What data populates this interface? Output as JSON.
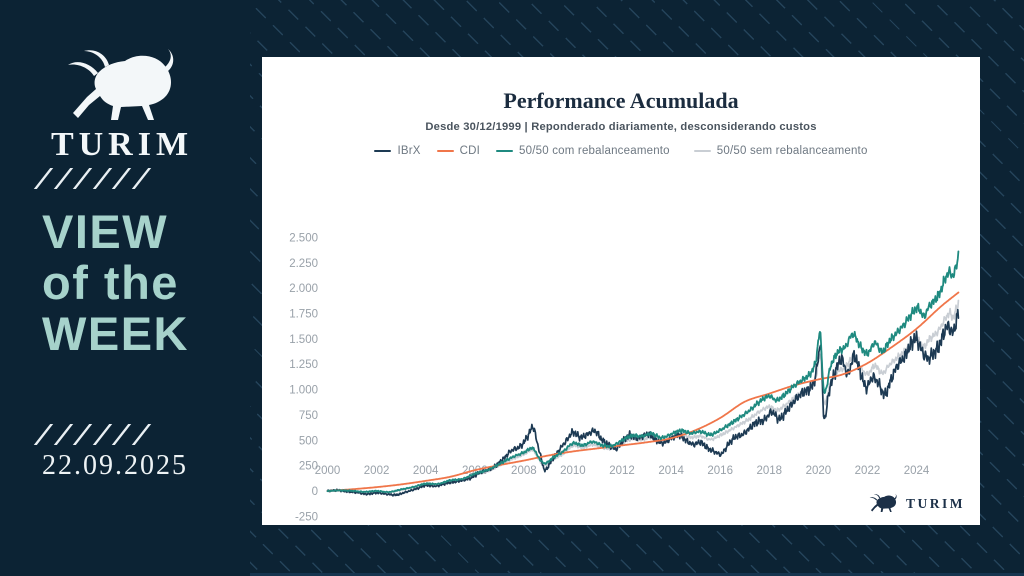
{
  "palette": {
    "background": "#0c2334",
    "card": "#ffffff",
    "accent_text": "#a6d2cb",
    "brand_navy": "#1c3048"
  },
  "sidebar": {
    "brand": "TURIM",
    "title_lines": [
      "VIEW",
      "of the",
      "WEEK"
    ],
    "date": "22.09.2025"
  },
  "footer": {
    "brand": "TURIM"
  },
  "chart_data": {
    "type": "line",
    "title": "Performance Acumulada",
    "subtitle": "Desde 30/12/1999 | Reponderado diariamente, desconsiderando custos",
    "grid": false,
    "legend_position": "top",
    "x_range": [
      1999.95,
      2025.75
    ],
    "y_range": [
      -250,
      2500
    ],
    "x_ticks": [
      {
        "v": 2000,
        "label": "2000"
      },
      {
        "v": 2002,
        "label": "2002"
      },
      {
        "v": 2004,
        "label": "2004"
      },
      {
        "v": 2006,
        "label": "2006"
      },
      {
        "v": 2008,
        "label": "2008"
      },
      {
        "v": 2010,
        "label": "2010"
      },
      {
        "v": 2012,
        "label": "2012"
      },
      {
        "v": 2014,
        "label": "2014"
      },
      {
        "v": 2016,
        "label": "2016"
      },
      {
        "v": 2018,
        "label": "2018"
      },
      {
        "v": 2020,
        "label": "2020"
      },
      {
        "v": 2022,
        "label": "2022"
      },
      {
        "v": 2024,
        "label": "2024"
      }
    ],
    "y_ticks": [
      {
        "v": -250,
        "label": "-250"
      },
      {
        "v": 0,
        "label": "0"
      },
      {
        "v": 250,
        "label": "250"
      },
      {
        "v": 500,
        "label": "500"
      },
      {
        "v": 750,
        "label": "750"
      },
      {
        "v": 1000,
        "label": "1.000"
      },
      {
        "v": 1250,
        "label": "1.250"
      },
      {
        "v": 1500,
        "label": "1.500"
      },
      {
        "v": 1750,
        "label": "1.750"
      },
      {
        "v": 2000,
        "label": "2.000"
      },
      {
        "v": 2250,
        "label": "2.250"
      },
      {
        "v": 2500,
        "label": "2.500"
      }
    ],
    "series": [
      {
        "name": "IBrX",
        "color": "#1d3a53",
        "jitter": 1.0,
        "width": 1.7,
        "points": [
          [
            2000,
            0
          ],
          [
            2000.4,
            8
          ],
          [
            2000.8,
            -5
          ],
          [
            2001.2,
            -15
          ],
          [
            2001.6,
            -30
          ],
          [
            2002,
            -18
          ],
          [
            2002.4,
            -30
          ],
          [
            2002.8,
            -38
          ],
          [
            2003.2,
            -10
          ],
          [
            2003.6,
            20
          ],
          [
            2004,
            55
          ],
          [
            2004.4,
            48
          ],
          [
            2004.9,
            80
          ],
          [
            2005.3,
            95
          ],
          [
            2005.8,
            125
          ],
          [
            2006.2,
            180
          ],
          [
            2006.7,
            225
          ],
          [
            2007.1,
            300
          ],
          [
            2007.5,
            400
          ],
          [
            2007.8,
            430
          ],
          [
            2008,
            480
          ],
          [
            2008.2,
            560
          ],
          [
            2008.38,
            630
          ],
          [
            2008.55,
            470
          ],
          [
            2008.7,
            330
          ],
          [
            2008.85,
            205
          ],
          [
            2009.1,
            290
          ],
          [
            2009.4,
            390
          ],
          [
            2009.8,
            520
          ],
          [
            2010,
            580
          ],
          [
            2010.3,
            530
          ],
          [
            2010.6,
            560
          ],
          [
            2010.9,
            590
          ],
          [
            2011.2,
            500
          ],
          [
            2011.5,
            450
          ],
          [
            2011.75,
            415
          ],
          [
            2012,
            480
          ],
          [
            2012.3,
            550
          ],
          [
            2012.6,
            520
          ],
          [
            2012.9,
            545
          ],
          [
            2013.1,
            560
          ],
          [
            2013.4,
            500
          ],
          [
            2013.7,
            475
          ],
          [
            2014,
            520
          ],
          [
            2014.3,
            555
          ],
          [
            2014.6,
            500
          ],
          [
            2014.9,
            460
          ],
          [
            2015.2,
            480
          ],
          [
            2015.5,
            420
          ],
          [
            2015.8,
            385
          ],
          [
            2016.05,
            364
          ],
          [
            2016.3,
            450
          ],
          [
            2016.6,
            530
          ],
          [
            2016.9,
            555
          ],
          [
            2017.2,
            620
          ],
          [
            2017.5,
            680
          ],
          [
            2017.8,
            700
          ],
          [
            2018.1,
            780
          ],
          [
            2018.4,
            710
          ],
          [
            2018.7,
            790
          ],
          [
            2019,
            880
          ],
          [
            2019.3,
            960
          ],
          [
            2019.6,
            1000
          ],
          [
            2019.85,
            1100
          ],
          [
            2020.05,
            1400
          ],
          [
            2020.1,
            1465
          ],
          [
            2020.22,
            738
          ],
          [
            2020.45,
            1000
          ],
          [
            2020.7,
            1180
          ],
          [
            2020.95,
            1300
          ],
          [
            2021.2,
            1150
          ],
          [
            2021.45,
            1330
          ],
          [
            2021.7,
            1180
          ],
          [
            2021.95,
            1020
          ],
          [
            2022.2,
            1120
          ],
          [
            2022.45,
            1060
          ],
          [
            2022.7,
            950
          ],
          [
            2022.95,
            1090
          ],
          [
            2023.2,
            1230
          ],
          [
            2023.5,
            1320
          ],
          [
            2023.8,
            1460
          ],
          [
            2024,
            1500
          ],
          [
            2024.2,
            1390
          ],
          [
            2024.45,
            1310
          ],
          [
            2024.7,
            1360
          ],
          [
            2024.9,
            1420
          ],
          [
            2025.1,
            1550
          ],
          [
            2025.3,
            1630
          ],
          [
            2025.45,
            1560
          ],
          [
            2025.6,
            1650
          ],
          [
            2025.72,
            1790
          ]
        ]
      },
      {
        "name": "CDI",
        "color": "#f0764a",
        "jitter": 0,
        "width": 1.8,
        "points": [
          [
            2000,
            0
          ],
          [
            2001,
            17
          ],
          [
            2002,
            38
          ],
          [
            2003,
            65
          ],
          [
            2004,
            100
          ],
          [
            2005,
            140
          ],
          [
            2006,
            205
          ],
          [
            2007,
            255
          ],
          [
            2008,
            300
          ],
          [
            2009,
            350
          ],
          [
            2010,
            390
          ],
          [
            2011,
            420
          ],
          [
            2012,
            450
          ],
          [
            2013,
            480
          ],
          [
            2014,
            520
          ],
          [
            2015,
            600
          ],
          [
            2016,
            720
          ],
          [
            2017,
            880
          ],
          [
            2018,
            960
          ],
          [
            2019,
            1040
          ],
          [
            2020,
            1100
          ],
          [
            2021,
            1150
          ],
          [
            2022,
            1260
          ],
          [
            2023,
            1420
          ],
          [
            2024,
            1600
          ],
          [
            2025,
            1820
          ],
          [
            2025.72,
            1960
          ]
        ]
      },
      {
        "name": "50/50 com rebalanceamento",
        "color": "#1f8a80",
        "jitter": 0.5,
        "width": 1.8,
        "points": [
          [
            2000,
            0
          ],
          [
            2000.5,
            6
          ],
          [
            2001,
            2
          ],
          [
            2001.5,
            -8
          ],
          [
            2002,
            0
          ],
          [
            2002.5,
            -10
          ],
          [
            2003,
            15
          ],
          [
            2003.5,
            40
          ],
          [
            2004,
            72
          ],
          [
            2004.5,
            70
          ],
          [
            2005,
            105
          ],
          [
            2005.5,
            120
          ],
          [
            2006,
            170
          ],
          [
            2006.5,
            205
          ],
          [
            2007,
            265
          ],
          [
            2007.5,
            330
          ],
          [
            2008,
            380
          ],
          [
            2008.38,
            420
          ],
          [
            2008.6,
            330
          ],
          [
            2008.85,
            272
          ],
          [
            2009.2,
            330
          ],
          [
            2009.6,
            390
          ],
          [
            2010,
            470
          ],
          [
            2010.4,
            450
          ],
          [
            2010.8,
            485
          ],
          [
            2011.2,
            450
          ],
          [
            2011.6,
            445
          ],
          [
            2012,
            500
          ],
          [
            2012.4,
            545
          ],
          [
            2012.8,
            540
          ],
          [
            2013.2,
            565
          ],
          [
            2013.6,
            525
          ],
          [
            2014,
            560
          ],
          [
            2014.4,
            595
          ],
          [
            2014.8,
            570
          ],
          [
            2015.2,
            585
          ],
          [
            2015.6,
            555
          ],
          [
            2016,
            600
          ],
          [
            2016.4,
            660
          ],
          [
            2016.8,
            725
          ],
          [
            2017.2,
            795
          ],
          [
            2017.6,
            880
          ],
          [
            2018,
            935
          ],
          [
            2018.3,
            895
          ],
          [
            2018.6,
            945
          ],
          [
            2019,
            1035
          ],
          [
            2019.4,
            1105
          ],
          [
            2019.7,
            1165
          ],
          [
            2019.9,
            1290
          ],
          [
            2020.08,
            1550
          ],
          [
            2020.22,
            985
          ],
          [
            2020.5,
            1230
          ],
          [
            2020.8,
            1370
          ],
          [
            2021.1,
            1420
          ],
          [
            2021.4,
            1545
          ],
          [
            2021.7,
            1430
          ],
          [
            2022,
            1355
          ],
          [
            2022.3,
            1460
          ],
          [
            2022.6,
            1375
          ],
          [
            2022.9,
            1480
          ],
          [
            2023.2,
            1560
          ],
          [
            2023.5,
            1645
          ],
          [
            2023.8,
            1745
          ],
          [
            2024.05,
            1805
          ],
          [
            2024.3,
            1725
          ],
          [
            2024.5,
            1815
          ],
          [
            2024.75,
            1885
          ],
          [
            2024.95,
            1955
          ],
          [
            2025.15,
            2085
          ],
          [
            2025.35,
            2160
          ],
          [
            2025.5,
            2115
          ],
          [
            2025.6,
            2215
          ],
          [
            2025.72,
            2330
          ]
        ]
      },
      {
        "name": "50/50 sem rebalanceamento",
        "color": "#c9ced4",
        "jitter": 0.45,
        "width": 1.7,
        "points": [
          [
            2000,
            0
          ],
          [
            2000.5,
            5
          ],
          [
            2001,
            0
          ],
          [
            2001.5,
            -10
          ],
          [
            2002,
            -3
          ],
          [
            2002.5,
            -14
          ],
          [
            2003,
            10
          ],
          [
            2003.5,
            34
          ],
          [
            2004,
            66
          ],
          [
            2004.5,
            63
          ],
          [
            2005,
            97
          ],
          [
            2005.5,
            112
          ],
          [
            2006,
            160
          ],
          [
            2006.5,
            192
          ],
          [
            2007,
            250
          ],
          [
            2007.5,
            312
          ],
          [
            2008,
            360
          ],
          [
            2008.38,
            400
          ],
          [
            2008.6,
            315
          ],
          [
            2008.85,
            256
          ],
          [
            2009.2,
            310
          ],
          [
            2009.6,
            365
          ],
          [
            2010,
            445
          ],
          [
            2010.4,
            425
          ],
          [
            2010.8,
            458
          ],
          [
            2011.2,
            425
          ],
          [
            2011.6,
            418
          ],
          [
            2012,
            468
          ],
          [
            2012.4,
            510
          ],
          [
            2012.8,
            505
          ],
          [
            2013.2,
            528
          ],
          [
            2013.6,
            490
          ],
          [
            2014,
            520
          ],
          [
            2014.4,
            552
          ],
          [
            2014.8,
            528
          ],
          [
            2015.2,
            540
          ],
          [
            2015.6,
            508
          ],
          [
            2016,
            548
          ],
          [
            2016.4,
            600
          ],
          [
            2016.8,
            655
          ],
          [
            2017.2,
            712
          ],
          [
            2017.6,
            782
          ],
          [
            2018,
            830
          ],
          [
            2018.3,
            796
          ],
          [
            2018.6,
            838
          ],
          [
            2019,
            915
          ],
          [
            2019.4,
            975
          ],
          [
            2019.7,
            1025
          ],
          [
            2019.9,
            1125
          ],
          [
            2020.08,
            1330
          ],
          [
            2020.22,
            872
          ],
          [
            2020.5,
            1070
          ],
          [
            2020.8,
            1180
          ],
          [
            2021.1,
            1220
          ],
          [
            2021.4,
            1312
          ],
          [
            2021.7,
            1222
          ],
          [
            2022,
            1152
          ],
          [
            2022.3,
            1236
          ],
          [
            2022.6,
            1162
          ],
          [
            2022.9,
            1246
          ],
          [
            2023.2,
            1312
          ],
          [
            2023.5,
            1372
          ],
          [
            2023.8,
            1446
          ],
          [
            2024.05,
            1492
          ],
          [
            2024.3,
            1422
          ],
          [
            2024.5,
            1492
          ],
          [
            2024.75,
            1542
          ],
          [
            2024.95,
            1602
          ],
          [
            2025.15,
            1692
          ],
          [
            2025.35,
            1752
          ],
          [
            2025.5,
            1712
          ],
          [
            2025.6,
            1782
          ],
          [
            2025.72,
            1870
          ]
        ]
      }
    ]
  }
}
